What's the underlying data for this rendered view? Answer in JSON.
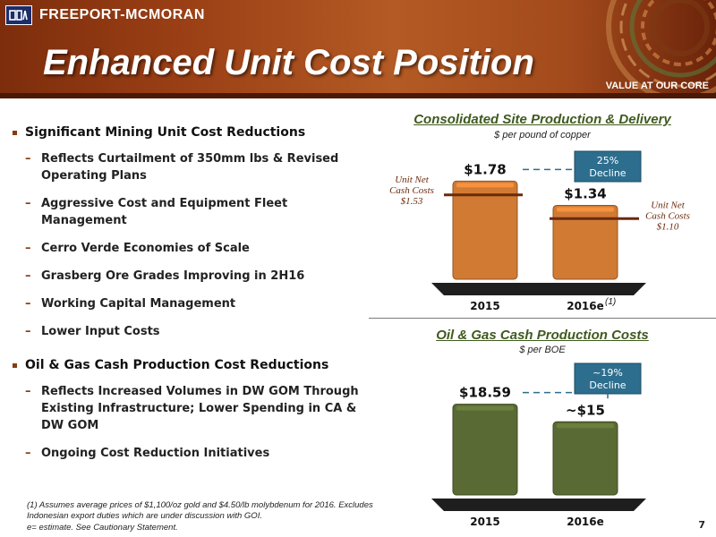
{
  "header": {
    "logo_text": "FREEPORT-MCMORAN",
    "logo_abbr": "FCX",
    "title": "Enhanced Unit Cost Position",
    "tagline": "VALUE AT OUR CORE"
  },
  "bullets": [
    {
      "heading": "Significant Mining Unit Cost Reductions",
      "items": [
        "Reflects Curtailment of 350mm lbs & Revised Operating Plans",
        "Aggressive Cost and Equipment Fleet Management",
        "Cerro Verde Economies of Scale",
        "Grasberg Ore Grades Improving in 2H16",
        "Working Capital Management",
        "Lower Input Costs"
      ]
    },
    {
      "heading": "Oil & Gas Cash Production Cost Reductions",
      "items": [
        "Reflects Increased Volumes in DW GOM Through Existing Infrastructure; Lower Spending in CA & DW GOM",
        "Ongoing Cost Reduction Initiatives"
      ]
    }
  ],
  "footnotes": {
    "note1": "(1) Assumes average prices of $1,100/oz gold and $4.50/lb molybdenum for 2016. Excludes Indonesian export duties which are under discussion with GOI.",
    "note_e": "e= estimate. See Cautionary Statement."
  },
  "page_number": "7",
  "colors": {
    "copper_bar": "#d07a34",
    "olive_bar": "#5a6a34",
    "callout": "#2d6e8e",
    "cash_line": "#6b2a0c"
  },
  "chart_data": [
    {
      "type": "bar",
      "title": "Consolidated Site Production & Delivery",
      "subtitle": "$ per pound of copper",
      "categories": [
        "2015",
        "2016e"
      ],
      "category_note": "(1)",
      "values": [
        1.78,
        1.34
      ],
      "value_labels": [
        "$1.78",
        "$1.34"
      ],
      "callout": "25% Decline",
      "cash_costs": [
        1.53,
        1.1
      ],
      "cash_cost_labels": [
        {
          "line1": "Unit Net",
          "line2": "Cash Costs",
          "line3": "$1.53"
        },
        {
          "line1": "Unit Net",
          "line2": "Cash Costs",
          "line3": "$1.10"
        }
      ],
      "ylim": [
        0,
        1.9
      ]
    },
    {
      "type": "bar",
      "title": "Oil & Gas Cash Production Costs",
      "subtitle": "$ per BOE",
      "categories": [
        "2015",
        "2016e"
      ],
      "values": [
        18.59,
        15
      ],
      "value_labels": [
        "$18.59",
        "~$15"
      ],
      "callout": "~19% Decline",
      "ylim": [
        0,
        20
      ]
    }
  ]
}
